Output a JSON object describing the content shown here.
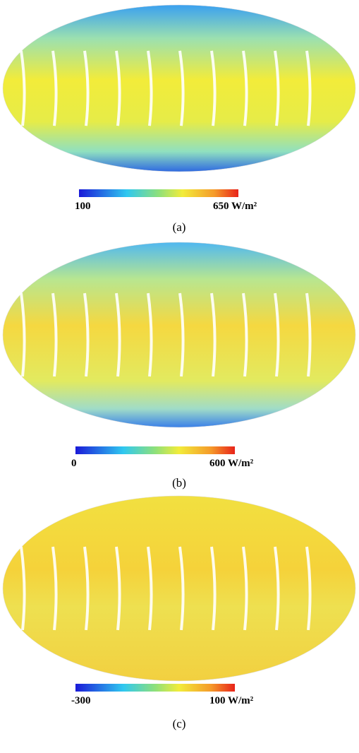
{
  "panels": [
    {
      "label": "(a)",
      "colorbar": {
        "ticks": [
          100,
          {
            "value": 650,
            "label": "650 W/m²"
          }
        ]
      }
    },
    {
      "label": "(b)",
      "colorbar": {
        "ticks": [
          0,
          {
            "value": 600,
            "label": "600 W/m²"
          }
        ]
      }
    },
    {
      "label": "(c)",
      "colorbar": {
        "ticks": [
          -300,
          {
            "value": 100,
            "label": "100 W/m²"
          }
        ]
      }
    }
  ]
}
